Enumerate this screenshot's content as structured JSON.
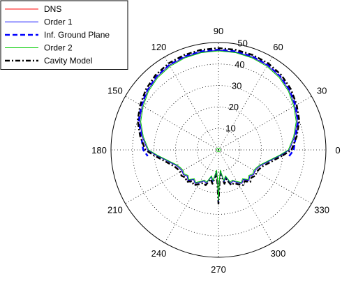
{
  "chart_data": {
    "type": "polar-line",
    "title": "",
    "angle_unit": "degrees",
    "radial_range": [
      0,
      50
    ],
    "radial_ticks": [
      10,
      20,
      30,
      40,
      50
    ],
    "radial_tick_labels": [
      "10",
      "20",
      "30",
      "40",
      "50"
    ],
    "angle_ticks": [
      0,
      30,
      60,
      90,
      120,
      150,
      180,
      210,
      240,
      270,
      300,
      330
    ],
    "angle_tick_labels": [
      "0",
      "30",
      "60",
      "90",
      "120",
      "150",
      "180",
      "210",
      "240",
      "270",
      "300",
      "330"
    ],
    "grid": true,
    "legend_position": "top-left",
    "legend": [
      "DNS",
      "Order 1",
      "Inf. Ground Plane",
      "Order 2",
      "Cavity Model"
    ],
    "angles": [
      -5,
      0,
      10,
      20,
      30,
      40,
      50,
      60,
      70,
      80,
      90,
      100,
      110,
      120,
      130,
      140,
      150,
      160,
      170,
      180,
      185,
      190,
      195,
      200,
      205,
      210,
      215,
      220,
      225,
      230,
      235,
      240,
      245,
      250,
      255,
      260,
      265,
      268,
      270,
      272,
      275,
      280,
      285,
      290,
      295,
      300,
      305,
      310,
      315,
      320,
      325,
      330,
      335,
      340,
      345,
      350,
      355
    ],
    "series": [
      {
        "name": "DNS",
        "color": "#ff0000",
        "style": "solid",
        "r": [
          29,
          33,
          36,
          39,
          41,
          43,
          44.5,
          45.5,
          46,
          46.3,
          46.4,
          46.3,
          46,
          45.5,
          44.5,
          43,
          41,
          39,
          36,
          33,
          29,
          25.5,
          23,
          21,
          20,
          19.5,
          20,
          19,
          20,
          18,
          19,
          17.5,
          16,
          16.5,
          13,
          15,
          10,
          14,
          24,
          14,
          10,
          15,
          13,
          16.5,
          16,
          17.5,
          19,
          18,
          20,
          19,
          20,
          19.5,
          20,
          21,
          23,
          25.5,
          29
        ]
      },
      {
        "name": "Order 1",
        "color": "#0000ff",
        "style": "solid",
        "r": [
          29,
          33,
          36,
          39,
          41,
          43,
          44.5,
          45.5,
          46,
          46.3,
          46.4,
          46.3,
          46,
          45.5,
          44.5,
          43,
          41,
          39,
          36,
          33,
          29,
          25.5,
          23,
          21,
          20,
          19.5,
          20,
          19,
          20,
          18,
          19,
          17.5,
          16,
          16.5,
          13,
          15,
          10,
          14,
          24,
          14,
          10,
          15,
          13,
          16.5,
          16,
          17.5,
          19,
          18,
          20,
          19,
          20,
          19.5,
          20,
          21,
          23,
          25.5,
          29
        ]
      },
      {
        "name": "Inf. Ground Plane",
        "color": "#0000ff",
        "style": "dashed",
        "r": [
          33,
          35,
          36.5,
          39.5,
          41.5,
          43.2,
          44.7,
          45.7,
          46.3,
          46.6,
          46.7,
          46.6,
          46.3,
          45.7,
          44.7,
          43.2,
          41.5,
          39.5,
          36.5,
          35,
          33
        ]
      },
      {
        "name": "Order 2",
        "color": "#00cc00",
        "style": "solid",
        "r": [
          28.5,
          32.5,
          35.5,
          38.5,
          40.5,
          42.5,
          44,
          45,
          45.6,
          46,
          46.1,
          46,
          45.6,
          45,
          44,
          42.5,
          40.5,
          38.5,
          35.5,
          32.5,
          28.5,
          25,
          22.5,
          20.5,
          19.5,
          19,
          19.5,
          18.5,
          19.5,
          17.5,
          18.5,
          17,
          15.5,
          16,
          12.5,
          14.5,
          9.5,
          13.5,
          23.5,
          13.5,
          9.5,
          14.5,
          12.5,
          16,
          15.5,
          17,
          18.5,
          17.5,
          19.5,
          18.5,
          19.5,
          19,
          19.5,
          20.5,
          22.5,
          25,
          28.5
        ]
      },
      {
        "name": "Cavity Model",
        "color": "#000000",
        "style": "dashdot",
        "r": [
          30,
          34,
          37,
          40,
          42,
          44,
          45.5,
          46.5,
          47,
          47.3,
          47.4,
          47.3,
          47,
          46.5,
          45.5,
          44,
          42,
          40,
          37,
          34,
          30,
          26.5,
          24,
          22,
          21,
          20.5,
          21,
          20,
          21,
          19,
          20,
          18.5,
          17,
          17.5,
          14,
          16,
          11,
          15,
          25,
          15,
          11,
          16,
          14,
          17.5,
          17,
          18.5,
          20,
          19,
          21,
          20,
          21,
          20.5,
          21,
          22,
          24,
          26.5,
          30
        ]
      }
    ]
  }
}
